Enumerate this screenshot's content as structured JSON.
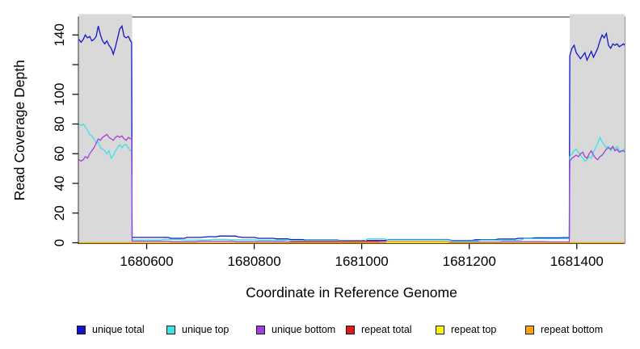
{
  "figure": {
    "background": "#ffffff",
    "highlight_color": "#d9d9d9",
    "axis_color": "#000000",
    "box_color": "#2a2a2a"
  },
  "legend": [
    {
      "label": "unique total",
      "color": "#1414ce"
    },
    {
      "label": "unique top",
      "color": "#3ce3e3"
    },
    {
      "label": "unique bottom",
      "color": "#a23fd9"
    },
    {
      "label": "repeat total",
      "color": "#e01818"
    },
    {
      "label": "repeat top",
      "color": "#f7f700"
    },
    {
      "label": "repeat bottom",
      "color": "#ffa500"
    }
  ],
  "chart_data": {
    "type": "line",
    "title": "",
    "xlabel": "Coordinate in Reference Genome",
    "ylabel": "Read Coverage Depth",
    "xlim": [
      1680473,
      1681489
    ],
    "ylim": [
      0,
      152
    ],
    "grid": false,
    "legend_position": "bottom",
    "x_ticks": [
      {
        "value": 1680600,
        "label": "1680600"
      },
      {
        "value": 1680800,
        "label": "1680800"
      },
      {
        "value": 1681000,
        "label": "1681000"
      },
      {
        "value": 1681200,
        "label": "1681200"
      },
      {
        "value": 1681400,
        "label": "1681400"
      }
    ],
    "y_ticks": [
      {
        "value": 0,
        "label": "0"
      },
      {
        "value": 20,
        "label": "20"
      },
      {
        "value": 40,
        "label": "40"
      },
      {
        "value": 60,
        "label": "60"
      },
      {
        "value": 80,
        "label": "80"
      },
      {
        "value": 100,
        "label": "100"
      },
      {
        "value": 120,
        "label": ""
      },
      {
        "value": 140,
        "label": "140"
      }
    ],
    "highlight_regions": [
      {
        "from": 1680474,
        "to": 1680573
      },
      {
        "from": 1681387,
        "to": 1681489
      }
    ],
    "series": [
      {
        "name": "unique total",
        "color": "#1414ce",
        "points": [
          [
            1680474,
            137
          ],
          [
            1680478,
            135
          ],
          [
            1680482,
            137
          ],
          [
            1680486,
            140
          ],
          [
            1680490,
            138
          ],
          [
            1680494,
            139
          ],
          [
            1680498,
            136
          ],
          [
            1680502,
            137
          ],
          [
            1680506,
            139
          ],
          [
            1680510,
            146
          ],
          [
            1680514,
            140
          ],
          [
            1680518,
            136
          ],
          [
            1680522,
            134
          ],
          [
            1680526,
            136
          ],
          [
            1680530,
            133
          ],
          [
            1680534,
            131
          ],
          [
            1680538,
            127
          ],
          [
            1680542,
            132
          ],
          [
            1680546,
            138
          ],
          [
            1680550,
            144
          ],
          [
            1680554,
            146
          ],
          [
            1680558,
            139
          ],
          [
            1680562,
            138
          ],
          [
            1680566,
            139
          ],
          [
            1680570,
            136
          ],
          [
            1680572,
            135
          ],
          [
            1680573,
            3.6
          ],
          [
            1680640,
            3.6
          ],
          [
            1680645,
            3.0
          ],
          [
            1680670,
            3.0
          ],
          [
            1680675,
            3.6
          ],
          [
            1680700,
            3.6
          ],
          [
            1680715,
            4.1
          ],
          [
            1680730,
            4.1
          ],
          [
            1680735,
            4.5
          ],
          [
            1680765,
            4.5
          ],
          [
            1680770,
            4.0
          ],
          [
            1680778,
            3.6
          ],
          [
            1680800,
            3.6
          ],
          [
            1680808,
            3.0
          ],
          [
            1680835,
            3.0
          ],
          [
            1680842,
            2.6
          ],
          [
            1680862,
            2.6
          ],
          [
            1680868,
            2.2
          ],
          [
            1680890,
            2.2
          ],
          [
            1680895,
            1.8
          ],
          [
            1680955,
            1.8
          ],
          [
            1680960,
            1.4
          ],
          [
            1681000,
            1.4
          ],
          [
            1681005,
            1.6
          ],
          [
            1681045,
            1.6
          ],
          [
            1681050,
            2.2
          ],
          [
            1681160,
            2.2
          ],
          [
            1681168,
            1.5
          ],
          [
            1681205,
            1.5
          ],
          [
            1681212,
            2.0
          ],
          [
            1681248,
            2.0
          ],
          [
            1681255,
            2.5
          ],
          [
            1681285,
            2.5
          ],
          [
            1681292,
            3.0
          ],
          [
            1681315,
            3.0
          ],
          [
            1681322,
            3.3
          ],
          [
            1681368,
            3.3
          ],
          [
            1681375,
            3.5
          ],
          [
            1681386,
            3.5
          ],
          [
            1681387,
            126
          ],
          [
            1681391,
            131
          ],
          [
            1681395,
            133
          ],
          [
            1681399,
            128
          ],
          [
            1681403,
            126
          ],
          [
            1681407,
            124
          ],
          [
            1681411,
            126
          ],
          [
            1681415,
            128
          ],
          [
            1681419,
            123
          ],
          [
            1681423,
            126
          ],
          [
            1681427,
            129
          ],
          [
            1681431,
            125
          ],
          [
            1681435,
            128
          ],
          [
            1681439,
            131
          ],
          [
            1681443,
            136
          ],
          [
            1681447,
            140
          ],
          [
            1681451,
            138
          ],
          [
            1681455,
            141
          ],
          [
            1681459,
            133
          ],
          [
            1681463,
            131
          ],
          [
            1681467,
            134
          ],
          [
            1681471,
            133
          ],
          [
            1681475,
            134
          ],
          [
            1681479,
            132
          ],
          [
            1681483,
            133
          ],
          [
            1681487,
            134
          ],
          [
            1681489,
            133
          ]
        ]
      },
      {
        "name": "unique top",
        "color": "#3ce3e3",
        "points": [
          [
            1680474,
            80
          ],
          [
            1680478,
            79
          ],
          [
            1680482,
            80
          ],
          [
            1680486,
            78
          ],
          [
            1680490,
            76
          ],
          [
            1680494,
            73
          ],
          [
            1680498,
            72
          ],
          [
            1680502,
            70
          ],
          [
            1680506,
            67
          ],
          [
            1680510,
            68
          ],
          [
            1680514,
            64
          ],
          [
            1680518,
            63
          ],
          [
            1680522,
            62
          ],
          [
            1680526,
            60
          ],
          [
            1680530,
            62
          ],
          [
            1680534,
            57
          ],
          [
            1680538,
            59
          ],
          [
            1680542,
            62
          ],
          [
            1680546,
            64
          ],
          [
            1680550,
            66
          ],
          [
            1680554,
            64
          ],
          [
            1680558,
            66
          ],
          [
            1680562,
            66
          ],
          [
            1680566,
            64
          ],
          [
            1680570,
            62
          ],
          [
            1680572,
            62
          ],
          [
            1680573,
            1.9
          ],
          [
            1680625,
            1.9
          ],
          [
            1680632,
            2.3
          ],
          [
            1680662,
            2.3
          ],
          [
            1680668,
            1.9
          ],
          [
            1680715,
            1.9
          ],
          [
            1680722,
            2.3
          ],
          [
            1680748,
            2.3
          ],
          [
            1680755,
            2.0
          ],
          [
            1680802,
            2.0
          ],
          [
            1680808,
            1.7
          ],
          [
            1680858,
            1.7
          ],
          [
            1680865,
            1.4
          ],
          [
            1680955,
            1.4
          ],
          [
            1680962,
            1.1
          ],
          [
            1681005,
            1.1
          ],
          [
            1681011,
            2.6
          ],
          [
            1681042,
            2.6
          ],
          [
            1681048,
            1.9
          ],
          [
            1681160,
            1.9
          ],
          [
            1681167,
            1.2
          ],
          [
            1681215,
            1.2
          ],
          [
            1681222,
            1.7
          ],
          [
            1681295,
            1.7
          ],
          [
            1681302,
            2.7
          ],
          [
            1681386,
            2.7
          ],
          [
            1681387,
            58
          ],
          [
            1681391,
            60
          ],
          [
            1681395,
            62
          ],
          [
            1681399,
            63
          ],
          [
            1681403,
            61
          ],
          [
            1681407,
            59
          ],
          [
            1681411,
            57
          ],
          [
            1681415,
            55
          ],
          [
            1681419,
            56
          ],
          [
            1681423,
            58
          ],
          [
            1681427,
            57
          ],
          [
            1681431,
            61
          ],
          [
            1681435,
            64
          ],
          [
            1681439,
            67
          ],
          [
            1681443,
            71
          ],
          [
            1681447,
            68
          ],
          [
            1681451,
            66
          ],
          [
            1681455,
            64
          ],
          [
            1681459,
            65
          ],
          [
            1681463,
            62
          ],
          [
            1681467,
            64
          ],
          [
            1681471,
            63
          ],
          [
            1681475,
            65
          ],
          [
            1681479,
            62
          ],
          [
            1681483,
            61
          ],
          [
            1681487,
            63
          ],
          [
            1681489,
            62
          ]
        ]
      },
      {
        "name": "unique bottom",
        "color": "#a23fd9",
        "points": [
          [
            1680474,
            56
          ],
          [
            1680478,
            55
          ],
          [
            1680482,
            56
          ],
          [
            1680486,
            58
          ],
          [
            1680490,
            57
          ],
          [
            1680494,
            60
          ],
          [
            1680498,
            62
          ],
          [
            1680502,
            64
          ],
          [
            1680506,
            67
          ],
          [
            1680510,
            70
          ],
          [
            1680514,
            69
          ],
          [
            1680518,
            71
          ],
          [
            1680522,
            72
          ],
          [
            1680526,
            73
          ],
          [
            1680530,
            71
          ],
          [
            1680534,
            70
          ],
          [
            1680538,
            69
          ],
          [
            1680542,
            71
          ],
          [
            1680546,
            72
          ],
          [
            1680550,
            71
          ],
          [
            1680554,
            72
          ],
          [
            1680558,
            70
          ],
          [
            1680562,
            69
          ],
          [
            1680566,
            71
          ],
          [
            1680570,
            70
          ],
          [
            1680572,
            70
          ],
          [
            1680573,
            1.1
          ],
          [
            1680640,
            1.1
          ],
          [
            1680648,
            0.8
          ],
          [
            1680690,
            0.8
          ],
          [
            1680698,
            1.1
          ],
          [
            1680760,
            1.1
          ],
          [
            1680768,
            0.8
          ],
          [
            1680855,
            0.8
          ],
          [
            1680862,
            0.5
          ],
          [
            1681000,
            0.5
          ],
          [
            1681008,
            0.8
          ],
          [
            1681158,
            0.8
          ],
          [
            1681165,
            0.5
          ],
          [
            1681255,
            0.5
          ],
          [
            1681262,
            0.8
          ],
          [
            1681340,
            0.8
          ],
          [
            1681348,
            0.6
          ],
          [
            1681386,
            0.6
          ],
          [
            1681387,
            55
          ],
          [
            1681391,
            57
          ],
          [
            1681395,
            58
          ],
          [
            1681399,
            59
          ],
          [
            1681403,
            58
          ],
          [
            1681407,
            60
          ],
          [
            1681411,
            61
          ],
          [
            1681415,
            58
          ],
          [
            1681419,
            57
          ],
          [
            1681423,
            60
          ],
          [
            1681427,
            62
          ],
          [
            1681431,
            59
          ],
          [
            1681435,
            57
          ],
          [
            1681439,
            56
          ],
          [
            1681443,
            58
          ],
          [
            1681447,
            59
          ],
          [
            1681451,
            61
          ],
          [
            1681455,
            63
          ],
          [
            1681459,
            64
          ],
          [
            1681463,
            63
          ],
          [
            1681467,
            65
          ],
          [
            1681471,
            62
          ],
          [
            1681475,
            63
          ],
          [
            1681479,
            61
          ],
          [
            1681483,
            62
          ],
          [
            1681487,
            62
          ],
          [
            1681489,
            61
          ]
        ]
      },
      {
        "name": "repeat total",
        "color": "#e01818",
        "points": [
          [
            1680474,
            0
          ],
          [
            1680862,
            0
          ],
          [
            1680868,
            0.7
          ],
          [
            1681028,
            0.7
          ],
          [
            1681034,
            0
          ],
          [
            1681489,
            0
          ]
        ]
      },
      {
        "name": "repeat top",
        "color": "#f7f700",
        "points": [
          [
            1680474,
            0
          ],
          [
            1681489,
            0
          ]
        ]
      },
      {
        "name": "repeat bottom",
        "color": "#ffa500",
        "points": [
          [
            1680474,
            0
          ],
          [
            1681042,
            0
          ],
          [
            1681048,
            0.9
          ],
          [
            1681158,
            0.9
          ],
          [
            1681164,
            0
          ],
          [
            1681489,
            0
          ]
        ]
      }
    ]
  }
}
